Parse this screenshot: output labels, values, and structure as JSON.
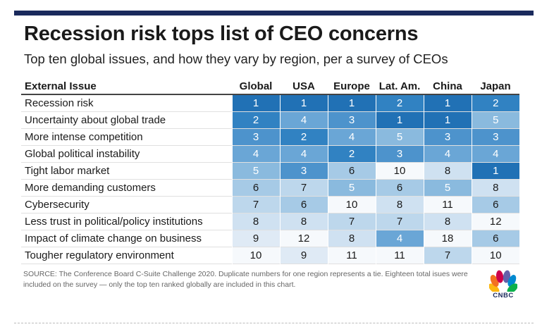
{
  "title": "Recession risk tops list of CEO concerns",
  "subtitle": "Top ten global issues, and how they vary by region, per a survey of CEOs",
  "source": "SOURCE: The Conference Board C-Suite Challenge 2020. Duplicate numbers for one region represents a tie. Eighteen total isues were included on the survey — only the top ten ranked globally are included in this chart.",
  "logo_text": "CNBC",
  "colors": {
    "rank_1": "#2171b5",
    "rank_2": "#3182c2",
    "rank_3": "#4d93cc",
    "rank_4": "#6aa6d6",
    "rank_5": "#8abade",
    "rank_6": "#a6cae6",
    "rank_7": "#bdd7ec",
    "rank_8": "#cfe1f1",
    "rank_9": "#dfeaf5",
    "rank_10_plus": "#f6f9fc",
    "topbar": "#1a2a5c"
  },
  "chart_data": {
    "type": "table",
    "title": "Recession risk tops list of CEO concerns",
    "subtitle": "Top ten global issues, and how they vary by region, per a survey of CEOs",
    "header_label": "External Issue",
    "columns": [
      "Global",
      "USA",
      "Europe",
      "Lat. Am.",
      "China",
      "Japan"
    ],
    "rows": [
      {
        "issue": "Recession risk",
        "ranks": [
          1,
          1,
          1,
          2,
          1,
          2
        ]
      },
      {
        "issue": "Uncertainty about global trade",
        "ranks": [
          2,
          4,
          3,
          1,
          1,
          5
        ]
      },
      {
        "issue": "More intense competition",
        "ranks": [
          3,
          2,
          4,
          5,
          3,
          3
        ]
      },
      {
        "issue": "Global political instability",
        "ranks": [
          4,
          4,
          2,
          3,
          4,
          4
        ]
      },
      {
        "issue": "Tight labor market",
        "ranks": [
          5,
          3,
          6,
          10,
          8,
          1
        ]
      },
      {
        "issue": "More demanding customers",
        "ranks": [
          6,
          7,
          5,
          6,
          5,
          8
        ]
      },
      {
        "issue": "Cybersecurity",
        "ranks": [
          7,
          6,
          10,
          8,
          11,
          6
        ]
      },
      {
        "issue": "Less trust in political/policy institutions",
        "ranks": [
          8,
          8,
          7,
          7,
          8,
          12
        ]
      },
      {
        "issue": "Impact of climate change on business",
        "ranks": [
          9,
          12,
          8,
          4,
          18,
          6
        ]
      },
      {
        "issue": "Tougher regulatory environment",
        "ranks": [
          10,
          9,
          11,
          11,
          7,
          10
        ]
      }
    ]
  }
}
